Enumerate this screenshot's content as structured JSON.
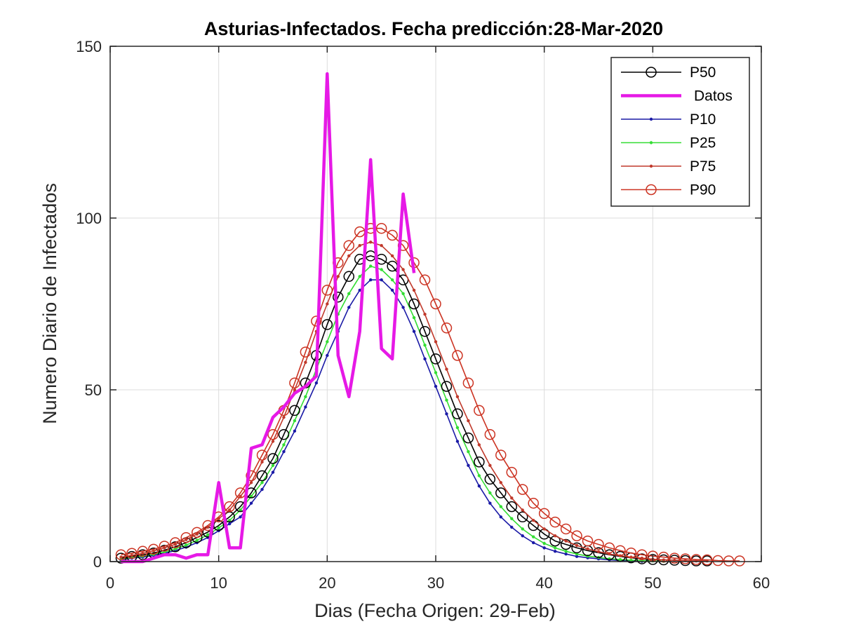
{
  "chart_data": {
    "type": "line",
    "title": "Asturias-Infectados. Fecha predicción:28-Mar-2020",
    "xlabel": "Dias (Fecha Origen: 29-Feb)",
    "ylabel": "Numero Diario de Infectados",
    "xlim": [
      0,
      60
    ],
    "ylim": [
      0,
      150
    ],
    "xticks": [
      0,
      10,
      20,
      30,
      40,
      50,
      60
    ],
    "yticks": [
      0,
      50,
      100,
      150
    ],
    "grid": true,
    "legend_position": "top-right",
    "series": [
      {
        "name": "P50",
        "color": "#000000",
        "marker": "circle",
        "x": [
          1,
          2,
          3,
          4,
          5,
          6,
          7,
          8,
          9,
          10,
          11,
          12,
          13,
          14,
          15,
          16,
          17,
          18,
          19,
          20,
          21,
          22,
          23,
          24,
          25,
          26,
          27,
          28,
          29,
          30,
          31,
          32,
          33,
          34,
          35,
          36,
          37,
          38,
          39,
          40,
          41,
          42,
          43,
          44,
          45,
          46,
          47,
          48,
          49,
          50,
          51,
          52,
          53,
          54,
          55
        ],
        "y": [
          1,
          1.5,
          2,
          2.5,
          3.3,
          4.3,
          5.5,
          7,
          8.6,
          10.5,
          13,
          16,
          20,
          25,
          30,
          37,
          44,
          52,
          60,
          69,
          77,
          83,
          88,
          89,
          88,
          86,
          82,
          75,
          67,
          59,
          51,
          43,
          36,
          29,
          24,
          20,
          16,
          13,
          10.5,
          8,
          6,
          5,
          4,
          3.2,
          2.6,
          2,
          1.5,
          1.1,
          0.8,
          0.6,
          0.5,
          0.4,
          0.3,
          0.2,
          0.2
        ]
      },
      {
        "name": "Datos",
        "color": "#e619e6",
        "marker": "none",
        "x": [
          1,
          2,
          3,
          4,
          5,
          6,
          7,
          8,
          9,
          10,
          11,
          12,
          13,
          14,
          15,
          16,
          17,
          18,
          19,
          20,
          21,
          22,
          23,
          24,
          25,
          26,
          27,
          28
        ],
        "y": [
          0,
          0,
          0,
          1,
          2,
          2,
          1,
          2,
          2,
          23,
          4,
          4,
          33,
          34,
          42,
          45,
          49,
          51,
          54,
          142,
          60,
          48,
          67,
          117,
          62,
          59,
          107,
          84
        ]
      },
      {
        "name": "P10",
        "color": "#1a1aa6",
        "marker": "dot",
        "x": [
          1,
          2,
          3,
          4,
          5,
          6,
          7,
          8,
          9,
          10,
          11,
          12,
          13,
          14,
          15,
          16,
          17,
          18,
          19,
          20,
          21,
          22,
          23,
          24,
          25,
          26,
          27,
          28,
          29,
          30,
          31,
          32,
          33,
          34,
          35,
          36,
          37,
          38,
          39,
          40,
          41,
          42,
          43,
          44,
          45,
          46,
          47,
          48,
          49
        ],
        "y": [
          0.5,
          1,
          1.3,
          1.8,
          2.4,
          3.2,
          4.2,
          5.5,
          7,
          9,
          11,
          13,
          17,
          21,
          26,
          32,
          38,
          45,
          52,
          60,
          67,
          74,
          79,
          82,
          82,
          79,
          74,
          67,
          59,
          51,
          43,
          35,
          28,
          22,
          17,
          13,
          10,
          7.5,
          5.5,
          4,
          3,
          2.2,
          1.5,
          1.1,
          0.8,
          0.5,
          0.3,
          0.2,
          0.1
        ]
      },
      {
        "name": "P25",
        "color": "#33dd33",
        "marker": "dot",
        "x": [
          1,
          2,
          3,
          4,
          5,
          6,
          7,
          8,
          9,
          10,
          11,
          12,
          13,
          14,
          15,
          16,
          17,
          18,
          19,
          20,
          21,
          22,
          23,
          24,
          25,
          26,
          27,
          28,
          29,
          30,
          31,
          32,
          33,
          34,
          35,
          36,
          37,
          38,
          39,
          40,
          41,
          42,
          43,
          44,
          45,
          46,
          47,
          48,
          49,
          50,
          51
        ],
        "y": [
          0.7,
          1.2,
          1.6,
          2.1,
          2.8,
          3.7,
          4.8,
          6.2,
          7.8,
          9.8,
          12,
          15,
          19,
          23,
          28,
          34,
          41,
          48,
          56,
          64,
          72,
          78,
          83,
          86,
          85,
          82,
          78,
          71,
          63,
          55,
          47,
          39,
          32,
          25,
          20,
          16,
          12.5,
          9.5,
          7.2,
          5.3,
          4,
          3,
          2.2,
          1.6,
          1.2,
          0.8,
          0.6,
          0.4,
          0.3,
          0.2,
          0.1
        ]
      },
      {
        "name": "P75",
        "color": "#c0392b",
        "marker": "dot",
        "x": [
          1,
          2,
          3,
          4,
          5,
          6,
          7,
          8,
          9,
          10,
          11,
          12,
          13,
          14,
          15,
          16,
          17,
          18,
          19,
          20,
          21,
          22,
          23,
          24,
          25,
          26,
          27,
          28,
          29,
          30,
          31,
          32,
          33,
          34,
          35,
          36,
          37,
          38,
          39,
          40,
          41,
          42,
          43,
          44,
          45,
          46,
          47,
          48,
          49,
          50,
          51,
          52,
          53,
          54,
          55
        ],
        "y": [
          1.3,
          1.8,
          2.4,
          3.1,
          4,
          5,
          6.4,
          8,
          10,
          12.5,
          15,
          19,
          23,
          29,
          35,
          42,
          50,
          58,
          67,
          75,
          83,
          89,
          92,
          93,
          92,
          89,
          85,
          79,
          72,
          64,
          56,
          48,
          41,
          34,
          28,
          23,
          18.5,
          15,
          12,
          9.5,
          7.5,
          6,
          4.7,
          3.7,
          2.9,
          2.2,
          1.7,
          1.3,
          1,
          0.7,
          0.5,
          0.4,
          0.3,
          0.2,
          0.2
        ]
      },
      {
        "name": "P90",
        "color": "#cc3322",
        "marker": "circle",
        "x": [
          1,
          2,
          3,
          4,
          5,
          6,
          7,
          8,
          9,
          10,
          11,
          12,
          13,
          14,
          15,
          16,
          17,
          18,
          19,
          20,
          21,
          22,
          23,
          24,
          25,
          26,
          27,
          28,
          29,
          30,
          31,
          32,
          33,
          34,
          35,
          36,
          37,
          38,
          39,
          40,
          41,
          42,
          43,
          44,
          45,
          46,
          47,
          48,
          49,
          50,
          51,
          52,
          53,
          54,
          55,
          56,
          57,
          58
        ],
        "y": [
          2,
          2.4,
          3,
          3.6,
          4.5,
          5.5,
          7,
          8.5,
          10.5,
          13,
          16,
          20,
          25,
          31,
          37,
          44,
          52,
          61,
          70,
          79,
          87,
          92,
          96,
          97,
          97,
          95,
          92,
          87,
          82,
          75,
          68,
          60,
          52,
          44,
          37,
          31,
          26,
          21,
          17,
          14,
          11.5,
          9.5,
          7.5,
          6,
          5,
          4,
          3.2,
          2.5,
          2,
          1.6,
          1.3,
          1,
          0.8,
          0.6,
          0.5,
          0.3,
          0.2,
          0.2
        ]
      }
    ]
  }
}
